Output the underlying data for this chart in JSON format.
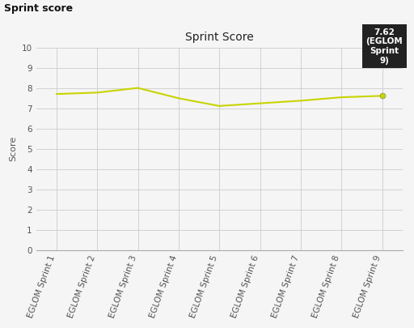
{
  "title": "Sprint Score",
  "suptitle": "Sprint score",
  "ylabel": "Score",
  "categories": [
    "EGLOM Sprint 1",
    "EGLOM Sprint 2",
    "EGLOM Sprint 3",
    "EGLOM Sprint 4",
    "EGLOM Sprint 5",
    "EGLOM Sprint 6",
    "EGLOM Sprint 7",
    "EGLOM Sprint 8",
    "EGLOM Sprint 9"
  ],
  "values": [
    7.71,
    7.78,
    8.01,
    7.5,
    7.12,
    7.25,
    7.38,
    7.55,
    7.62
  ],
  "line_color": "#c8d400",
  "marker_color": "#c8d400",
  "ylim": [
    0,
    10
  ],
  "yticks": [
    0,
    1,
    2,
    3,
    4,
    5,
    6,
    7,
    8,
    9,
    10
  ],
  "bg_color": "#f5f5f5",
  "plot_bg_color": "#f5f5f5",
  "grid_color": "#cccccc",
  "annotation_text": "7.62\n(EGLOM\nSprint\n9)",
  "annotation_bg": "#222222",
  "annotation_fg": "#ffffff",
  "title_fontsize": 10,
  "suptitle_fontsize": 9,
  "axis_label_fontsize": 8,
  "tick_fontsize": 7.5
}
